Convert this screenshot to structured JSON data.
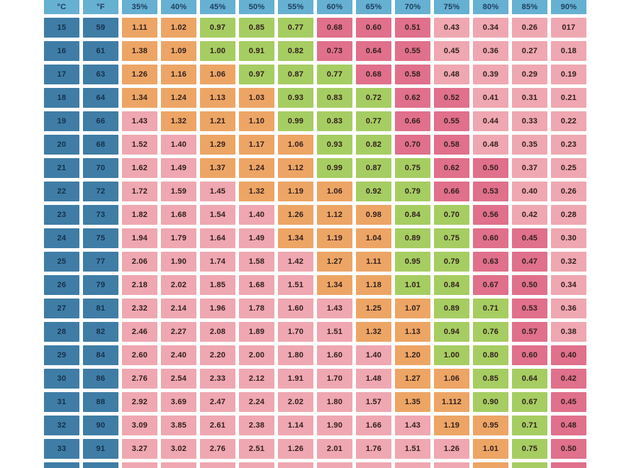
{
  "palette": {
    "header_bg": "#66b0d2",
    "header_text": "#1d3d5c",
    "temp_bg": "#3f7da6",
    "temp_text": "#15304b",
    "orange": "#eda565",
    "green": "#a6cd62",
    "pink": "#efa7b1",
    "rose": "#e0708b",
    "value_text": "#33211f",
    "gap": "#ffffff"
  },
  "chart_data": {
    "type": "heatmap",
    "title": "",
    "xlabel": "",
    "ylabel": "",
    "legend_position": "none",
    "color_key_meaning": {
      "O": "orange",
      "G": "green",
      "P": "light-pink",
      "R": "dark-rose"
    },
    "columns": [
      "°C",
      "°F",
      "35%",
      "40%",
      "45%",
      "50%",
      "55%",
      "60%",
      "65%",
      "70%",
      "75%",
      "80%",
      "85%",
      "90%"
    ],
    "rows": [
      {
        "temp_c": "15",
        "temp_f": "59",
        "values": [
          "1.11",
          "1.02",
          "0.97",
          "0.85",
          "0.77",
          "0.68",
          "0.60",
          "0.51",
          "0.43",
          "0.34",
          "0.26",
          "017"
        ],
        "colors": [
          "O",
          "O",
          "G",
          "G",
          "G",
          "R",
          "R",
          "R",
          "P",
          "P",
          "P",
          "P"
        ]
      },
      {
        "temp_c": "16",
        "temp_f": "61",
        "values": [
          "1.38",
          "1.09",
          "1.00",
          "0.91",
          "0.82",
          "0.73",
          "0.64",
          "0.55",
          "0.45",
          "0.36",
          "0.27",
          "0.18"
        ],
        "colors": [
          "O",
          "O",
          "G",
          "G",
          "G",
          "R",
          "R",
          "R",
          "P",
          "P",
          "P",
          "P"
        ]
      },
      {
        "temp_c": "17",
        "temp_f": "63",
        "values": [
          "1.26",
          "1.16",
          "1.06",
          "0.97",
          "0.87",
          "0.77",
          "0.68",
          "0.58",
          "0.48",
          "0.39",
          "0.29",
          "0.19"
        ],
        "colors": [
          "O",
          "O",
          "O",
          "G",
          "G",
          "G",
          "R",
          "R",
          "P",
          "P",
          "P",
          "P"
        ]
      },
      {
        "temp_c": "18",
        "temp_f": "64",
        "values": [
          "1.34",
          "1.24",
          "1.13",
          "1.03",
          "0.93",
          "0.83",
          "0.72",
          "0.62",
          "0.52",
          "0.41",
          "0.31",
          "0.21"
        ],
        "colors": [
          "O",
          "O",
          "O",
          "O",
          "G",
          "G",
          "G",
          "R",
          "R",
          "P",
          "P",
          "P"
        ]
      },
      {
        "temp_c": "19",
        "temp_f": "66",
        "values": [
          "1.43",
          "1.32",
          "1.21",
          "1.10",
          "0.99",
          "0.83",
          "0.77",
          "0.66",
          "0.55",
          "0.44",
          "0.33",
          "0.22"
        ],
        "colors": [
          "P",
          "O",
          "O",
          "O",
          "G",
          "G",
          "G",
          "R",
          "R",
          "P",
          "P",
          "P"
        ]
      },
      {
        "temp_c": "20",
        "temp_f": "68",
        "values": [
          "1.52",
          "1.40",
          "1.29",
          "1.17",
          "1.06",
          "0.93",
          "0.82",
          "0.70",
          "0.58",
          "0.48",
          "0.35",
          "0.23"
        ],
        "colors": [
          "P",
          "P",
          "O",
          "O",
          "O",
          "G",
          "G",
          "R",
          "R",
          "P",
          "P",
          "P"
        ]
      },
      {
        "temp_c": "21",
        "temp_f": "70",
        "values": [
          "1.62",
          "1.49",
          "1.37",
          "1.24",
          "1.12",
          "0.99",
          "0.87",
          "0.75",
          "0.62",
          "0.50",
          "0.37",
          "0.25"
        ],
        "colors": [
          "P",
          "P",
          "O",
          "O",
          "O",
          "G",
          "G",
          "G",
          "R",
          "R",
          "P",
          "P"
        ]
      },
      {
        "temp_c": "22",
        "temp_f": "72",
        "values": [
          "1.72",
          "1.59",
          "1.45",
          "1.32",
          "1.19",
          "1.06",
          "0.92",
          "0.79",
          "0.66",
          "0.53",
          "0.40",
          "0.26"
        ],
        "colors": [
          "P",
          "P",
          "P",
          "O",
          "O",
          "O",
          "G",
          "G",
          "R",
          "R",
          "P",
          "P"
        ]
      },
      {
        "temp_c": "23",
        "temp_f": "73",
        "values": [
          "1.82",
          "1.68",
          "1.54",
          "1.40",
          "1.26",
          "1.12",
          "0.98",
          "0.84",
          "0.70",
          "0.56",
          "0.42",
          "0.28"
        ],
        "colors": [
          "P",
          "P",
          "P",
          "P",
          "O",
          "O",
          "O",
          "G",
          "G",
          "R",
          "P",
          "P"
        ]
      },
      {
        "temp_c": "24",
        "temp_f": "75",
        "values": [
          "1.94",
          "1.79",
          "1.64",
          "1.49",
          "1.34",
          "1.19",
          "1.04",
          "0.89",
          "0.75",
          "0.60",
          "0.45",
          "0.30"
        ],
        "colors": [
          "P",
          "P",
          "P",
          "P",
          "O",
          "O",
          "O",
          "G",
          "G",
          "R",
          "R",
          "P"
        ]
      },
      {
        "temp_c": "25",
        "temp_f": "77",
        "values": [
          "2.06",
          "1.90",
          "1.74",
          "1.58",
          "1.42",
          "1.27",
          "1.11",
          "0.95",
          "0.79",
          "0.63",
          "0.47",
          "0.32"
        ],
        "colors": [
          "P",
          "P",
          "P",
          "P",
          "P",
          "O",
          "O",
          "G",
          "G",
          "R",
          "R",
          "P"
        ]
      },
      {
        "temp_c": "26",
        "temp_f": "79",
        "values": [
          "2.18",
          "2.02",
          "1.85",
          "1.68",
          "1.51",
          "1.34",
          "1.18",
          "1.01",
          "0.84",
          "0.67",
          "0.50",
          "0.34"
        ],
        "colors": [
          "P",
          "P",
          "P",
          "P",
          "P",
          "O",
          "O",
          "G",
          "G",
          "R",
          "R",
          "P"
        ]
      },
      {
        "temp_c": "27",
        "temp_f": "81",
        "values": [
          "2.32",
          "2.14",
          "1.96",
          "1.78",
          "1.60",
          "1.43",
          "1.25",
          "1.07",
          "0.89",
          "0.71",
          "0.53",
          "0.36"
        ],
        "colors": [
          "P",
          "P",
          "P",
          "P",
          "P",
          "P",
          "O",
          "O",
          "G",
          "G",
          "R",
          "P"
        ]
      },
      {
        "temp_c": "28",
        "temp_f": "82",
        "values": [
          "2.46",
          "2.27",
          "2.08",
          "1.89",
          "1.70",
          "1.51",
          "1.32",
          "1.13",
          "0.94",
          "0.76",
          "0.57",
          "0.38"
        ],
        "colors": [
          "P",
          "P",
          "P",
          "P",
          "P",
          "P",
          "O",
          "O",
          "G",
          "G",
          "R",
          "P"
        ]
      },
      {
        "temp_c": "29",
        "temp_f": "84",
        "values": [
          "2.60",
          "2.40",
          "2.20",
          "2.00",
          "1.80",
          "1.60",
          "1.40",
          "1.20",
          "1.00",
          "0.80",
          "0.60",
          "0.40"
        ],
        "colors": [
          "P",
          "P",
          "P",
          "P",
          "P",
          "P",
          "P",
          "O",
          "G",
          "G",
          "R",
          "R"
        ]
      },
      {
        "temp_c": "30",
        "temp_f": "86",
        "values": [
          "2.76",
          "2.54",
          "2.33",
          "2.12",
          "1.91",
          "1.70",
          "1.48",
          "1.27",
          "1.06",
          "0.85",
          "0.64",
          "0.42"
        ],
        "colors": [
          "P",
          "P",
          "P",
          "P",
          "P",
          "P",
          "P",
          "O",
          "O",
          "G",
          "G",
          "R"
        ]
      },
      {
        "temp_c": "31",
        "temp_f": "88",
        "values": [
          "2.92",
          "3.69",
          "2.47",
          "2.24",
          "2.02",
          "1.80",
          "1.57",
          "1.35",
          "1.112",
          "0.90",
          "0.67",
          "0.45"
        ],
        "colors": [
          "P",
          "P",
          "P",
          "P",
          "P",
          "P",
          "P",
          "O",
          "O",
          "G",
          "G",
          "R"
        ]
      },
      {
        "temp_c": "32",
        "temp_f": "90",
        "values": [
          "3.09",
          "3.85",
          "2.61",
          "2.38",
          "1.14",
          "1.90",
          "1.66",
          "1.43",
          "1.19",
          "0.95",
          "0.71",
          "0.48"
        ],
        "colors": [
          "P",
          "P",
          "P",
          "P",
          "P",
          "P",
          "P",
          "P",
          "O",
          "O",
          "G",
          "R"
        ]
      },
      {
        "temp_c": "33",
        "temp_f": "91",
        "values": [
          "3.27",
          "3.02",
          "2.76",
          "2.51",
          "1.26",
          "2.01",
          "1.76",
          "1.51",
          "1.26",
          "1.01",
          "0.75",
          "0.50"
        ],
        "colors": [
          "P",
          "P",
          "P",
          "P",
          "P",
          "P",
          "P",
          "P",
          "P",
          "O",
          "G",
          "R"
        ]
      }
    ],
    "partial_bottom_row_colors": [
      "P",
      "P",
      "P",
      "P",
      "P",
      "P",
      "P",
      "P",
      "P",
      "O",
      "G",
      "R"
    ]
  }
}
